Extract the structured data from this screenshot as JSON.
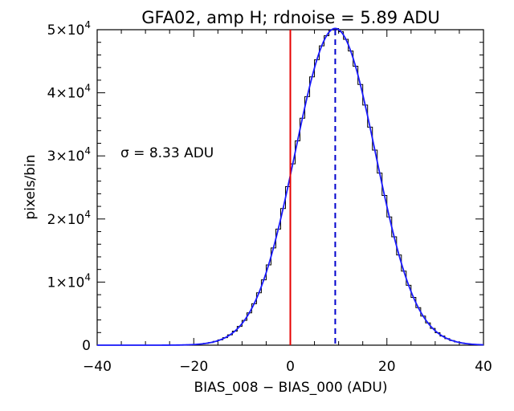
{
  "chart_data": {
    "type": "histogram",
    "title": "GFA02, amp H; rdnoise = 5.89 ADU",
    "xlabel": "BIAS_008 − BIAS_000 (ADU)",
    "ylabel": "pixels/bin",
    "xlim": [
      -40,
      40
    ],
    "ylim": [
      0,
      50000
    ],
    "x_ticks": [
      -40,
      -20,
      0,
      20,
      40
    ],
    "x_tick_labels": [
      "−40",
      "−20",
      "0",
      "20",
      "40"
    ],
    "y_ticks": [
      0,
      10000,
      20000,
      30000,
      40000,
      50000
    ],
    "y_tick_labels": [
      {
        "mantissa": "0",
        "exp": ""
      },
      {
        "mantissa": "1×10",
        "exp": "4"
      },
      {
        "mantissa": "2×10",
        "exp": "4"
      },
      {
        "mantissa": "3×10",
        "exp": "4"
      },
      {
        "mantissa": "4×10",
        "exp": "4"
      },
      {
        "mantissa": "5×10",
        "exp": "4"
      }
    ],
    "annotation": "σ = 8.33 ADU",
    "histogram": {
      "color": "#000000",
      "bin_width": 1,
      "mean": 9.3,
      "sigma": 8.33,
      "peak": 50200,
      "range": [
        -40,
        40
      ]
    },
    "fit_curve": {
      "color": "#1a1aff",
      "mean": 9.3,
      "sigma": 8.33,
      "peak": 50200
    },
    "vlines": [
      {
        "name": "zero",
        "x": 0,
        "color": "#e60000",
        "style": "solid"
      },
      {
        "name": "mean",
        "x": 9.3,
        "color": "#0000cc",
        "style": "dashed"
      }
    ]
  }
}
